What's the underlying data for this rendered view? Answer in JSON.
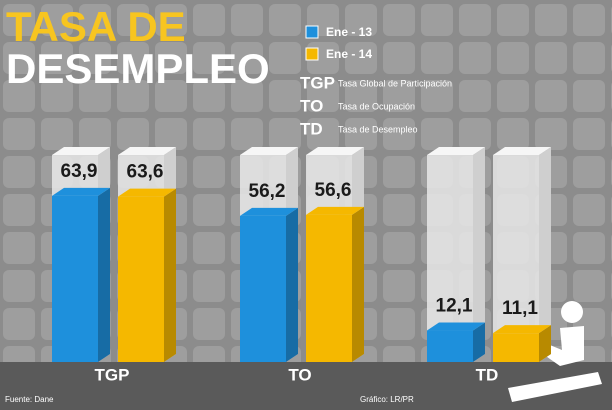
{
  "chart_data": {
    "type": "bar3d",
    "title": [
      "TASA DE",
      "DESEMPLEO"
    ],
    "categories": [
      "TGP",
      "TO",
      "TD"
    ],
    "series": [
      {
        "name": "Ene - 13",
        "color": "#1e90dc",
        "values": [
          63.9,
          56.2,
          12.1
        ],
        "value_labels": [
          "63,9",
          "56,2",
          "12,1"
        ]
      },
      {
        "name": "Ene - 14",
        "color": "#f5b800",
        "values": [
          63.6,
          56.6,
          11.1
        ],
        "value_labels": [
          "63,6",
          "56,6",
          "11,1"
        ]
      }
    ],
    "abbreviations": [
      {
        "code": "TGP",
        "meaning": "Tasa Global de Participación"
      },
      {
        "code": "TO",
        "meaning": "Tasa de Ocupación"
      },
      {
        "code": "TD",
        "meaning": "Tasa de Desempleo"
      }
    ],
    "source": "Fuente: Dane",
    "credit": "Gráfico: LR/PR"
  }
}
